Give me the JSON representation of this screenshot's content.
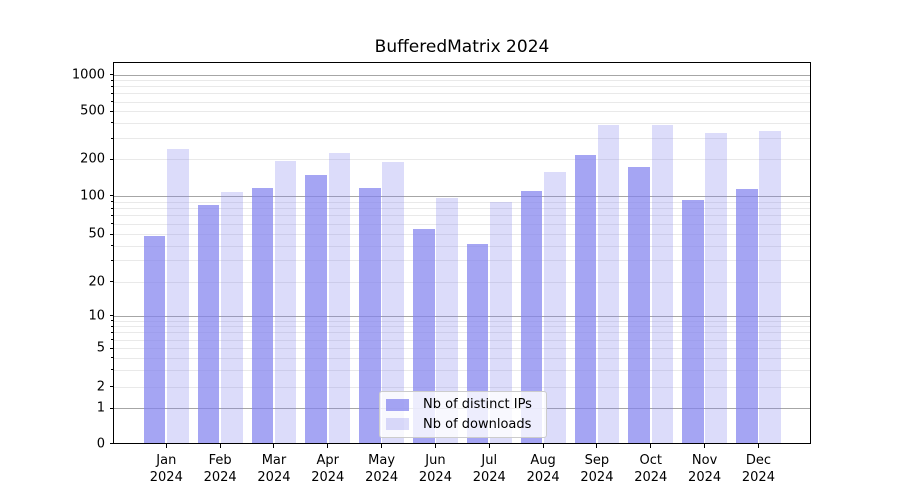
{
  "chart_data": {
    "type": "bar",
    "title": "BufferedMatrix 2024",
    "year": "2024",
    "categories": [
      "Jan",
      "Feb",
      "Mar",
      "Apr",
      "May",
      "Jun",
      "Jul",
      "Aug",
      "Sep",
      "Oct",
      "Nov",
      "Dec"
    ],
    "series": [
      {
        "name": "Nb of distinct IPs",
        "color": "#8282ee",
        "opacity": 0.72,
        "values": [
          48,
          85,
          115,
          149,
          115,
          55,
          41,
          110,
          216,
          172,
          93,
          114
        ]
      },
      {
        "name": "Nb of downloads",
        "color": "#8282ee",
        "opacity": 0.28,
        "values": [
          243,
          108,
          195,
          224,
          189,
          96,
          90,
          156,
          388,
          385,
          332,
          343
        ]
      }
    ],
    "yscale": "symlog",
    "yticks": [
      0,
      1,
      2,
      5,
      10,
      20,
      50,
      100,
      200,
      500,
      1000
    ],
    "ylim": [
      0,
      1270
    ],
    "xlabel": "",
    "ylabel": "",
    "grid": "horizontal",
    "legend_position": "lower center",
    "colors": {
      "grid_major": "#a6a6a6",
      "grid_minor": "#e9e9e9",
      "axis": "#000000",
      "background": "#ffffff"
    }
  }
}
